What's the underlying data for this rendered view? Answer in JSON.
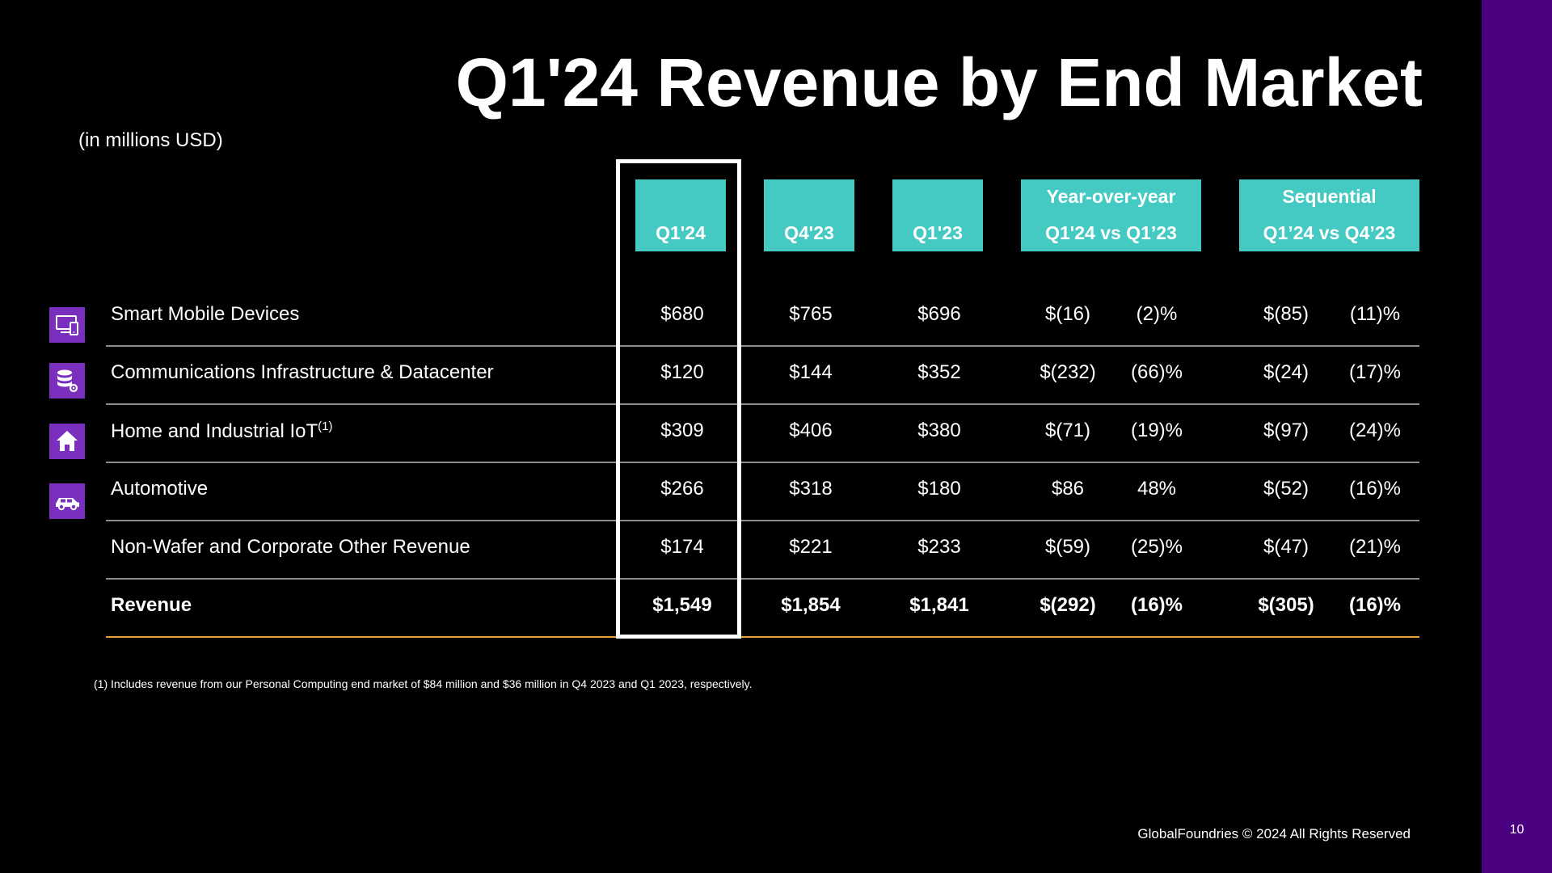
{
  "title": "Q1'24 Revenue by End Market",
  "units": "(in millions USD)",
  "headers": {
    "q1_24": {
      "line1": "",
      "line2": "Q1'24"
    },
    "q4_23": {
      "line1": "",
      "line2": "Q4'23"
    },
    "q1_23": {
      "line1": "",
      "line2": "Q1'23"
    },
    "yoy": {
      "line1": "Year-over-year",
      "line2": "Q1'24 vs Q1’23"
    },
    "seq": {
      "line1": "Sequential",
      "line2": "Q1’24 vs Q4’23"
    }
  },
  "rows": [
    {
      "label": "Smart Mobile Devices",
      "sup": "",
      "icon": "mobile-devices-icon",
      "q1_24": "$680",
      "q4_23": "$765",
      "q1_23": "$696",
      "yoy_amt": "$(16)",
      "yoy_pct": "(2)%",
      "seq_amt": "$(85)",
      "seq_pct": "(11)%"
    },
    {
      "label": "Communications Infrastructure & Datacenter",
      "sup": "",
      "icon": "database-gear-icon",
      "q1_24": "$120",
      "q4_23": "$144",
      "q1_23": "$352",
      "yoy_amt": "$(232)",
      "yoy_pct": "(66)%",
      "seq_amt": "$(24)",
      "seq_pct": "(17)%"
    },
    {
      "label": "Home and Industrial IoT",
      "sup": "(1)",
      "icon": "home-icon",
      "q1_24": "$309",
      "q4_23": "$406",
      "q1_23": "$380",
      "yoy_amt": "$(71)",
      "yoy_pct": "(19)%",
      "seq_amt": "$(97)",
      "seq_pct": "(24)%"
    },
    {
      "label": "Automotive",
      "sup": "",
      "icon": "car-icon",
      "q1_24": "$266",
      "q4_23": "$318",
      "q1_23": "$180",
      "yoy_amt": "$86",
      "yoy_pct": "48%",
      "seq_amt": "$(52)",
      "seq_pct": "(16)%"
    },
    {
      "label": "Non-Wafer and Corporate Other Revenue",
      "sup": "",
      "icon": "",
      "q1_24": "$174",
      "q4_23": "$221",
      "q1_23": "$233",
      "yoy_amt": "$(59)",
      "yoy_pct": "(25)%",
      "seq_amt": "$(47)",
      "seq_pct": "(21)%"
    },
    {
      "label": "Revenue",
      "sup": "",
      "icon": "",
      "q1_24": "$1,549",
      "q4_23": "$1,854",
      "q1_23": "$1,841",
      "yoy_amt": "$(292)",
      "yoy_pct": "(16)%",
      "seq_amt": "$(305)",
      "seq_pct": "(16)%"
    }
  ],
  "footnote": "(1) Includes revenue from our Personal Computing end market of $84 million and $36 million in Q4 2023 and Q1 2023, respectively.",
  "copyright": "GlobalFoundries © 2024 All Rights Reserved",
  "page_number": "10",
  "colors": {
    "header_fill": "#45c9c3",
    "side_bar": "#4b0082",
    "icon_fill": "#7b2fbe",
    "accent_line": "#e6a23c"
  }
}
